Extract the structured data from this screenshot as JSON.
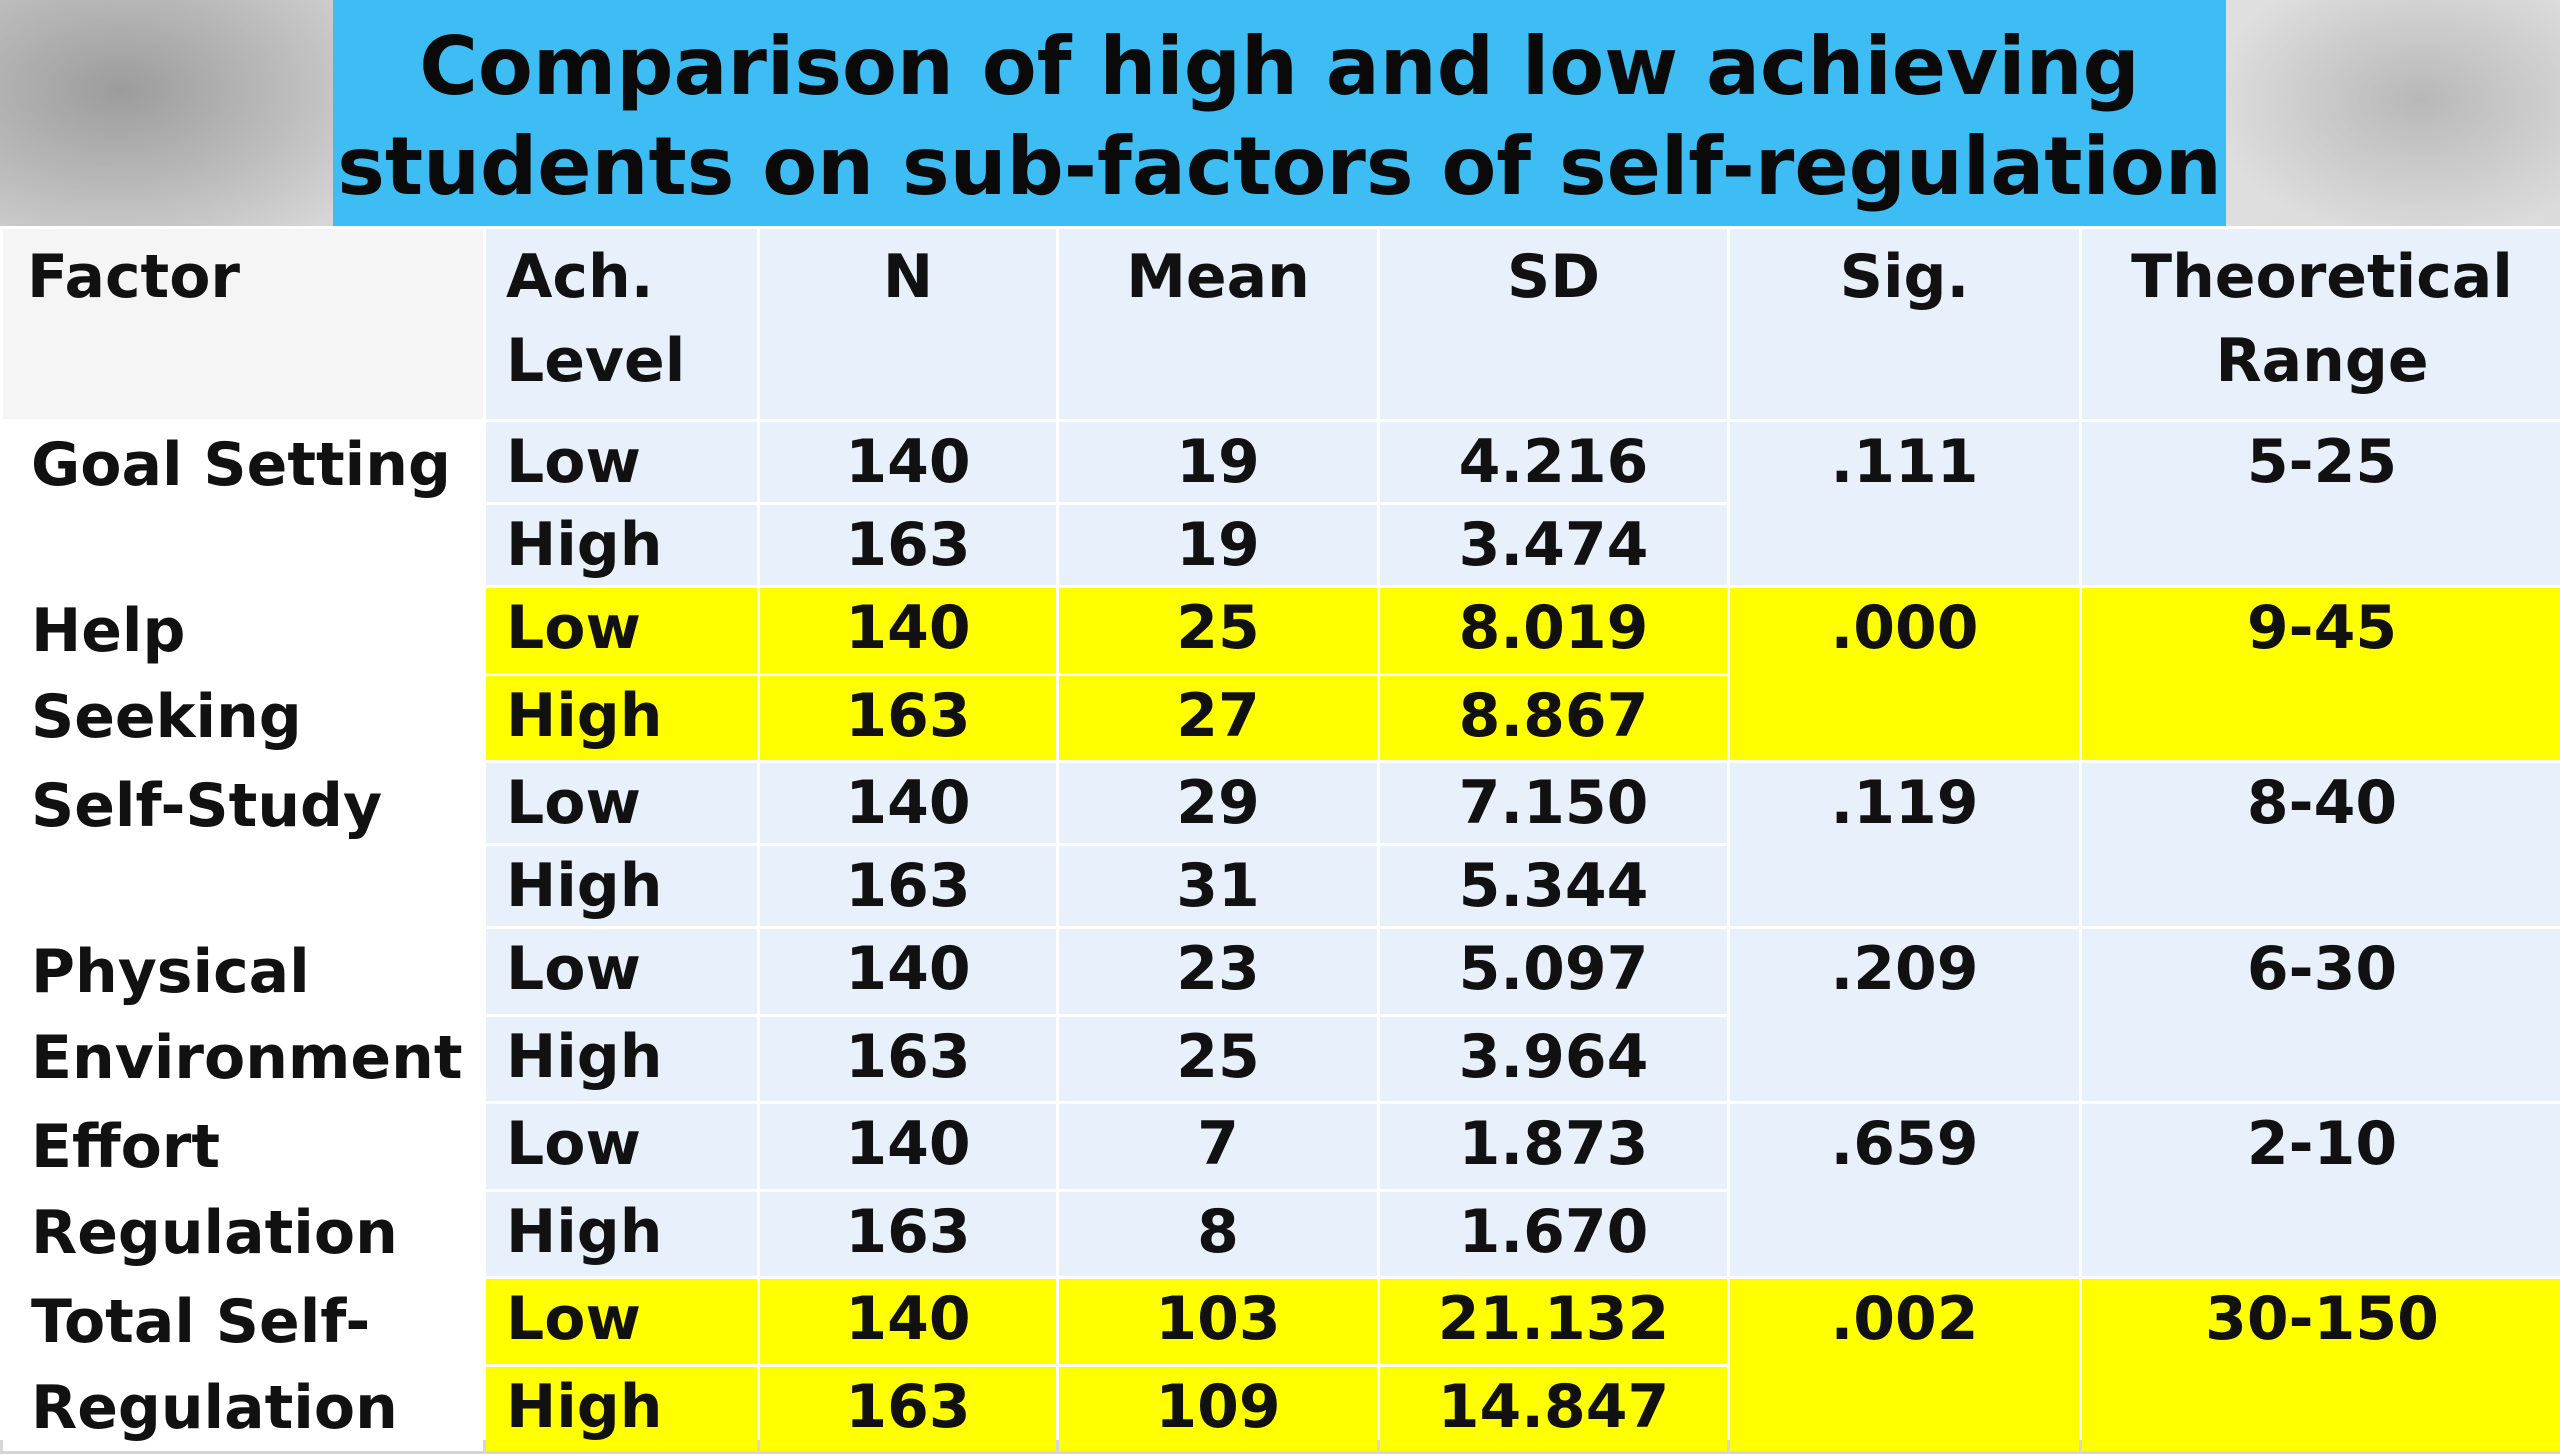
{
  "title": {
    "line1": "Comparison of high and low achieving",
    "line2": "students on sub-factors of self-regulation"
  },
  "colors": {
    "title_banner": "#3dbdf4",
    "cell_background": "#e8f0fc",
    "highlight": "#ffff00"
  },
  "table": {
    "headers": {
      "factor": "Factor",
      "ach_line1": "Ach.",
      "ach_line2": "Level",
      "n": "N",
      "mean": "Mean",
      "sd": "SD",
      "sig": "Sig.",
      "range_line1": "Theoretical",
      "range_line2": "Range"
    },
    "groups": [
      {
        "factor_line1": "Goal Setting",
        "factor_line2": "",
        "highlighted": false,
        "sig": ".111",
        "range": "5-25",
        "rows": [
          {
            "level": "Low",
            "n": "140",
            "mean": "19",
            "sd": "4.216"
          },
          {
            "level": "High",
            "n": "163",
            "mean": "19",
            "sd": "3.474"
          }
        ]
      },
      {
        "factor_line1": "Help Seeking",
        "factor_line2": "",
        "highlighted": true,
        "sig": ".000",
        "range": "9-45",
        "rows": [
          {
            "level": "Low",
            "n": "140",
            "mean": "25",
            "sd": "8.019"
          },
          {
            "level": "High",
            "n": "163",
            "mean": "27",
            "sd": "8.867"
          }
        ]
      },
      {
        "factor_line1": "Self-Study",
        "factor_line2": "",
        "highlighted": false,
        "sig": ".119",
        "range": "8-40",
        "rows": [
          {
            "level": "Low",
            "n": "140",
            "mean": "29",
            "sd": "7.150"
          },
          {
            "level": "High",
            "n": "163",
            "mean": "31",
            "sd": "5.344"
          }
        ]
      },
      {
        "factor_line1": "Physical",
        "factor_line2": "Environment",
        "highlighted": false,
        "sig": ".209",
        "range": "6-30",
        "rows": [
          {
            "level": "Low",
            "n": "140",
            "mean": "23",
            "sd": "5.097"
          },
          {
            "level": "High",
            "n": "163",
            "mean": "25",
            "sd": "3.964"
          }
        ]
      },
      {
        "factor_line1": "Effort",
        "factor_line2": "Regulation",
        "highlighted": false,
        "sig": ".659",
        "range": "2-10",
        "rows": [
          {
            "level": "Low",
            "n": "140",
            "mean": "7",
            "sd": "1.873"
          },
          {
            "level": "High",
            "n": "163",
            "mean": "8",
            "sd": "1.670"
          }
        ]
      },
      {
        "factor_line1": "Total Self-",
        "factor_line2": "Regulation",
        "highlighted": true,
        "sig": ".002",
        "range": "30-150",
        "rows": [
          {
            "level": "Low",
            "n": "140",
            "mean": "103",
            "sd": "21.132"
          },
          {
            "level": "High",
            "n": "163",
            "mean": "109",
            "sd": "14.847"
          }
        ]
      }
    ]
  }
}
